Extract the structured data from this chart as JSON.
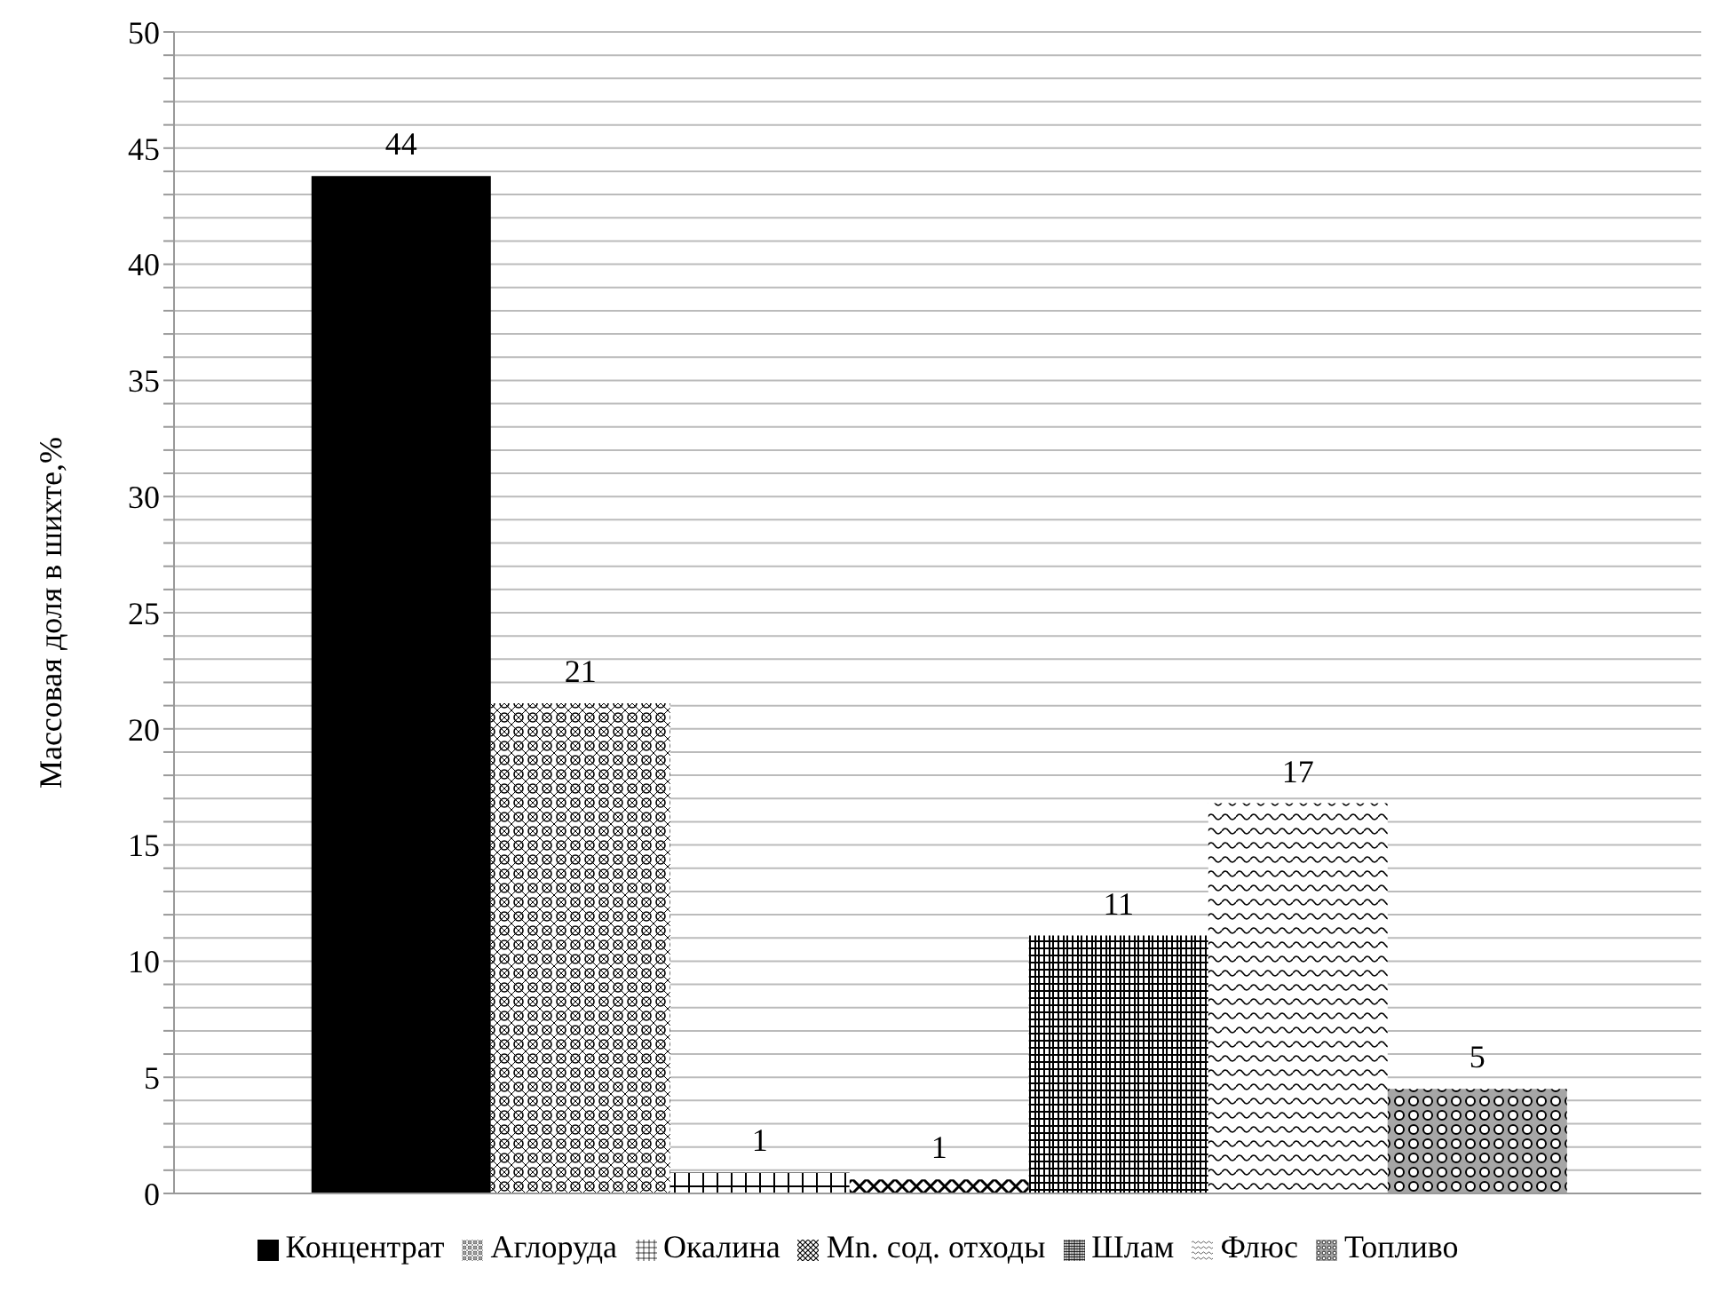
{
  "chart_data": {
    "type": "bar",
    "ylabel": "Массовая доля в шихте,%",
    "categories": [
      null
    ],
    "series": [
      {
        "name": "Концентрат",
        "color": "#000000",
        "values": [
          43.8
        ],
        "value_labels": [
          "44"
        ]
      },
      {
        "name": "Аглоруда",
        "color": "#000000",
        "values": [
          21.1
        ],
        "value_labels": [
          "21"
        ]
      },
      {
        "name": "Окалина",
        "color": "#000000",
        "values": [
          0.9
        ],
        "value_labels": [
          "1"
        ]
      },
      {
        "name": "Mn. сод. отходы",
        "color": "#000000",
        "values": [
          0.6
        ],
        "value_labels": [
          "1"
        ]
      },
      {
        "name": "Шлам",
        "color": "#000000",
        "values": [
          11.1
        ],
        "value_labels": [
          "11"
        ]
      },
      {
        "name": "Флюс",
        "color": "#000000",
        "values": [
          16.8
        ],
        "value_labels": [
          "17"
        ]
      },
      {
        "name": "Топливо",
        "color": "#000000",
        "values": [
          4.5
        ],
        "value_labels": [
          "5"
        ]
      }
    ],
    "ylim": [
      0,
      50
    ],
    "yticks": [
      0,
      {
        "value": 1,
        "label": null
      },
      {
        "value": 2,
        "label": null
      },
      {
        "value": 3,
        "label": null
      },
      {
        "value": 4,
        "label": null
      },
      5,
      {
        "value": 6,
        "label": null
      },
      {
        "value": 7,
        "label": null
      },
      {
        "value": 8,
        "label": null
      },
      {
        "value": 9,
        "label": null
      },
      10,
      {
        "value": 11,
        "label": null
      },
      {
        "value": 12,
        "label": null
      },
      {
        "value": 13,
        "label": null
      },
      {
        "value": 14,
        "label": null
      },
      15,
      {
        "value": 16,
        "label": null
      },
      {
        "value": 17,
        "label": null
      },
      {
        "value": 18,
        "label": null
      },
      {
        "value": 19,
        "label": null
      },
      20,
      {
        "value": 21,
        "label": null
      },
      {
        "value": 22,
        "label": null
      },
      {
        "value": 23,
        "label": null
      },
      {
        "value": 24,
        "label": null
      },
      25,
      {
        "value": 26,
        "label": null
      },
      {
        "value": 27,
        "label": null
      },
      {
        "value": 28,
        "label": null
      },
      {
        "value": 29,
        "label": null
      },
      30,
      {
        "value": 31,
        "label": null
      },
      {
        "value": 32,
        "label": null
      },
      {
        "value": 33,
        "label": null
      },
      {
        "value": 34,
        "label": null
      },
      35,
      {
        "value": 36,
        "label": null
      },
      {
        "value": 37,
        "label": null
      },
      {
        "value": 38,
        "label": null
      },
      {
        "value": 39,
        "label": null
      },
      40,
      {
        "value": 41,
        "label": null
      },
      {
        "value": 42,
        "label": null
      },
      {
        "value": 43,
        "label": null
      },
      {
        "value": 44,
        "label": null
      },
      45,
      {
        "value": 46,
        "label": null
      },
      {
        "value": 47,
        "label": null
      },
      {
        "value": 48,
        "label": null
      },
      {
        "value": 49,
        "label": null
      },
      50
    ],
    "grid": "y",
    "legend": "bottom"
  }
}
